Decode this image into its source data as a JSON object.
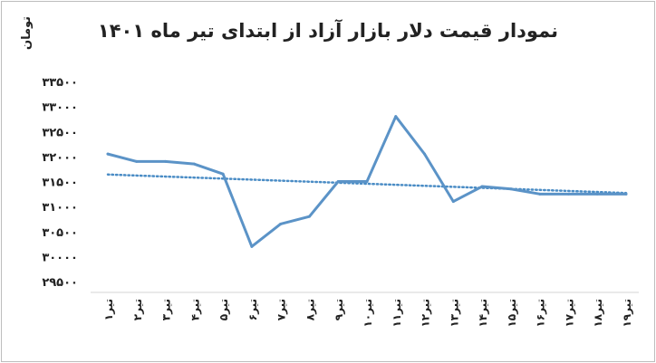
{
  "chart_data": {
    "type": "line",
    "title": "نمودار  قیمت دلار بازار آزاد از ابتدای تیر ماه ۱۴۰۱",
    "ylabel": "تومان",
    "xlabel": "",
    "categories": [
      "۱تیر",
      "۲تیر",
      "۳تیر",
      "۴تیر",
      "۵تیر",
      "۶تیر",
      "۷تیر",
      "۸تیر",
      "۹تیر",
      "۱۰تیر",
      "۱۱تیر",
      "۱۲تیر",
      "۱۳تیر",
      "۱۴تیر",
      "۱۵تیر",
      "۱۶تیر",
      "۱۷تیر",
      "۱۸تیر",
      "۱۹تیر"
    ],
    "y_tick_labels": [
      "۲۹۵۰۰",
      "۳۰۰۰۰",
      "۳۰۵۰۰",
      "۳۱۰۰۰",
      "۳۱۵۰۰",
      "۳۲۰۰۰",
      "۳۲۵۰۰",
      "۳۳۰۰۰",
      "۳۳۵۰۰"
    ],
    "ylim": [
      29500,
      33500
    ],
    "grid": false,
    "series": [
      {
        "values": [
          32050,
          31900,
          31900,
          31850,
          31650,
          30200,
          30650,
          30800,
          31500,
          31500,
          32800,
          32050,
          31100,
          31400,
          31350,
          31250,
          31250,
          31250,
          31250
        ]
      }
    ],
    "trendline": {
      "style": "dotted",
      "start": 31640,
      "end": 31270
    },
    "colors": {
      "series": "#5b93c7",
      "trend": "#4a8cc5"
    }
  }
}
